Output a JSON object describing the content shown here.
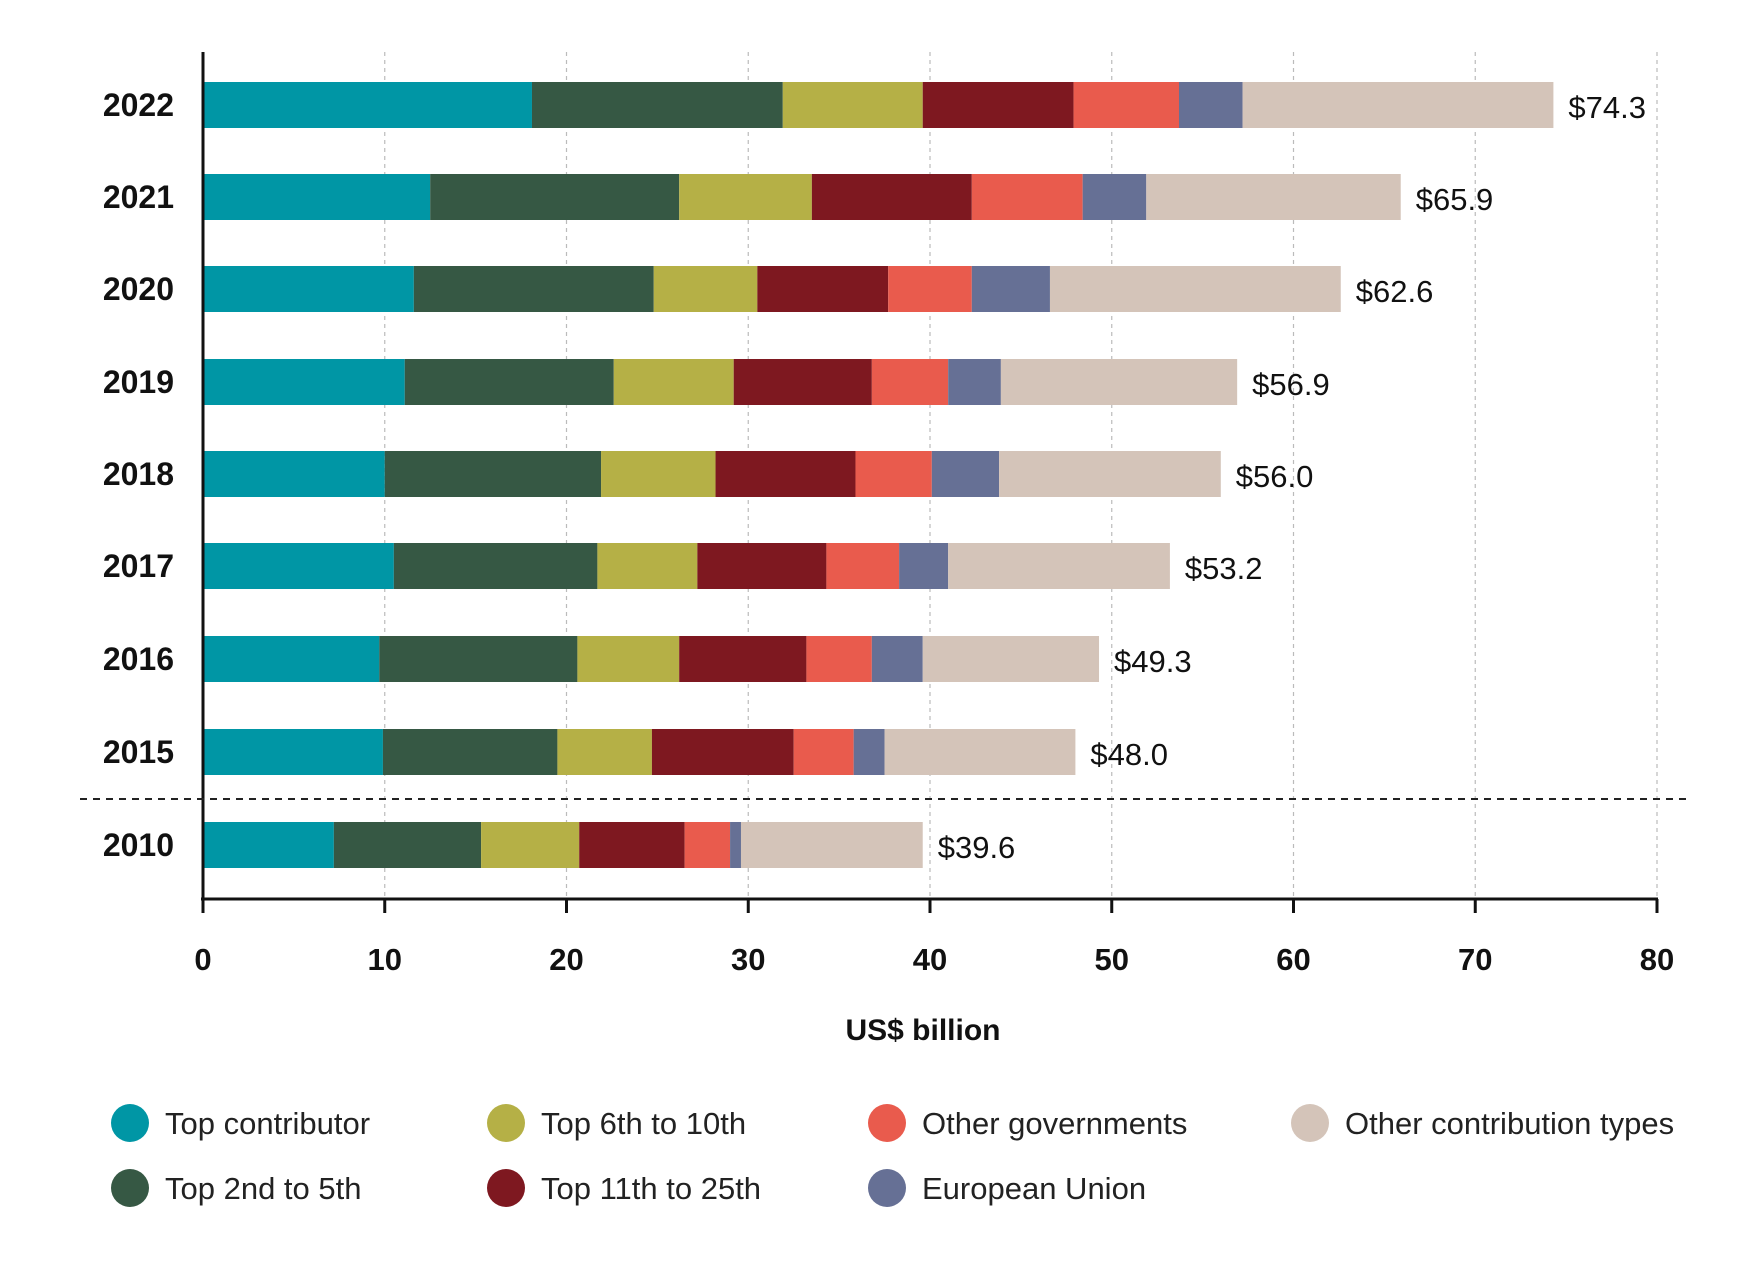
{
  "chart_data": {
    "type": "bar",
    "orientation": "horizontal",
    "stacked": true,
    "title": "",
    "xlabel": "US$ billion",
    "ylabel": "",
    "xlim": [
      0,
      80
    ],
    "xticks": [
      0,
      10,
      20,
      30,
      40,
      50,
      60,
      70,
      80
    ],
    "grid": "vertical dashed",
    "legend_position": "bottom",
    "categories": [
      "2022",
      "2021",
      "2020",
      "2019",
      "2018",
      "2017",
      "2016",
      "2015",
      "2010"
    ],
    "totals_labels": [
      "$74.3",
      "$65.9",
      "$62.6",
      "$56.9",
      "$56.0",
      "$53.2",
      "$49.3",
      "$48.0",
      "$39.6"
    ],
    "totals": [
      74.3,
      65.9,
      62.6,
      56.9,
      56.0,
      53.2,
      49.3,
      48.0,
      39.6
    ],
    "separator_before_category": "2010",
    "series": [
      {
        "name": "Top contributor",
        "color": "#0096a5",
        "values": [
          18.1,
          12.5,
          11.6,
          11.1,
          10.0,
          10.5,
          9.7,
          9.9,
          7.2
        ]
      },
      {
        "name": "Top 2nd to 5th",
        "color": "#365844",
        "values": [
          13.8,
          13.7,
          13.2,
          11.5,
          11.9,
          11.2,
          10.9,
          9.6,
          8.1
        ]
      },
      {
        "name": "Top 6th to 10th",
        "color": "#b5b046",
        "values": [
          7.7,
          7.3,
          5.7,
          6.6,
          6.3,
          5.5,
          5.6,
          5.2,
          5.4
        ]
      },
      {
        "name": "Top 11th to 25th",
        "color": "#7e1820",
        "values": [
          8.3,
          8.8,
          7.2,
          7.6,
          7.7,
          7.1,
          7.0,
          7.8,
          5.8
        ]
      },
      {
        "name": "Other governments",
        "color": "#e95b4d",
        "values": [
          5.8,
          6.1,
          4.6,
          4.2,
          4.2,
          4.0,
          3.6,
          3.3,
          2.5
        ]
      },
      {
        "name": "European Union",
        "color": "#667095",
        "values": [
          3.5,
          3.5,
          4.3,
          2.9,
          3.7,
          2.7,
          2.8,
          1.7,
          0.6
        ]
      },
      {
        "name": "Other contribution types",
        "color": "#d4c4b9",
        "values": [
          17.1,
          14.0,
          16.0,
          13.0,
          12.2,
          12.2,
          9.7,
          10.5,
          10.0
        ]
      }
    ]
  }
}
